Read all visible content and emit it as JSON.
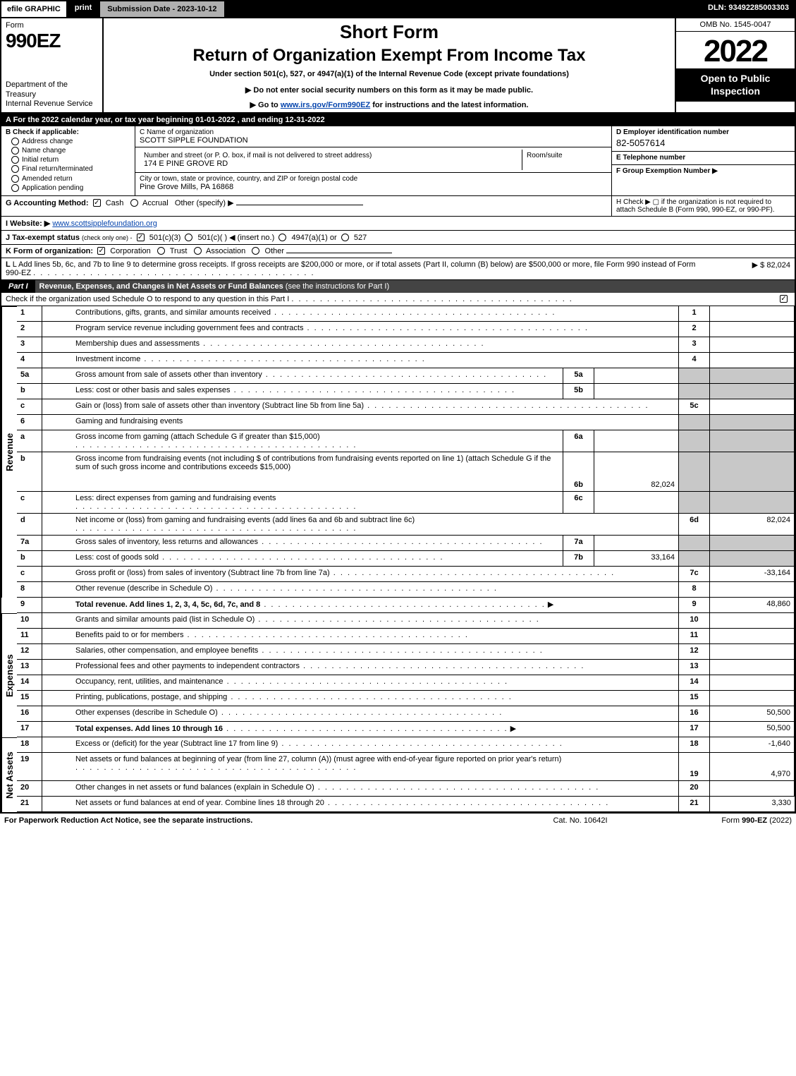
{
  "topbar": {
    "efile": "efile GRAPHIC",
    "print": "print",
    "subdate": "Submission Date - 2023-10-12",
    "dln": "DLN: 93492285003303"
  },
  "header": {
    "formword": "Form",
    "formno": "990EZ",
    "dept": "Department of the Treasury\nInternal Revenue Service",
    "short": "Short Form",
    "ret": "Return of Organization Exempt From Income Tax",
    "under": "Under section 501(c), 527, or 4947(a)(1) of the Internal Revenue Code (except private foundations)",
    "note1": "▶ Do not enter social security numbers on this form as it may be made public.",
    "note2_pre": "▶ Go to ",
    "note2_link": "www.irs.gov/Form990EZ",
    "note2_post": " for instructions and the latest information.",
    "omb": "OMB No. 1545-0047",
    "year": "2022",
    "open": "Open to Public Inspection"
  },
  "lineA": "A  For the 2022 calendar year, or tax year beginning 01-01-2022 , and ending 12-31-2022",
  "B": {
    "head": "B  Check if applicable:",
    "opts": [
      "Address change",
      "Name change",
      "Initial return",
      "Final return/terminated",
      "Amended return",
      "Application pending"
    ]
  },
  "C": {
    "label": "C Name of organization",
    "name": "SCOTT SIPPLE FOUNDATION",
    "street_label": "Number and street (or P. O. box, if mail is not delivered to street address)",
    "street": "174 E PINE GROVE RD",
    "room_label": "Room/suite",
    "city_label": "City or town, state or province, country, and ZIP or foreign postal code",
    "city": "Pine Grove Mills, PA  16868"
  },
  "D": {
    "label": "D Employer identification number",
    "ein": "82-5057614",
    "E_label": "E Telephone number",
    "F_label": "F Group Exemption Number   ▶"
  },
  "G": {
    "label": "G Accounting Method:",
    "cash": "Cash",
    "accrual": "Accrual",
    "other": "Other (specify) ▶"
  },
  "H": {
    "text": "H   Check ▶  ▢  if the organization is not required to attach Schedule B (Form 990, 990-EZ, or 990-PF)."
  },
  "I": {
    "label": "I Website: ▶",
    "url": "www.scottsipplefoundation.org"
  },
  "J": {
    "label": "J Tax-exempt status",
    "sub": "(check only one) -",
    "o1": "501(c)(3)",
    "o2": "501(c)(  ) ◀ (insert no.)",
    "o3": "4947(a)(1) or",
    "o4": "527"
  },
  "K": {
    "label": "K Form of organization:",
    "opts": [
      "Corporation",
      "Trust",
      "Association",
      "Other"
    ]
  },
  "L": {
    "text": "L Add lines 5b, 6c, and 7b to line 9 to determine gross receipts. If gross receipts are $200,000 or more, or if total assets (Part II, column (B) below) are $500,000 or more, file Form 990 instead of Form 990-EZ",
    "amount": "▶ $ 82,024"
  },
  "part1": {
    "num": "Part I",
    "title": "Revenue, Expenses, and Changes in Net Assets or Fund Balances",
    "paren": "(see the instructions for Part I)",
    "check": "Check if the organization used Schedule O to respond to any question in this Part I"
  },
  "sides": {
    "rev": "Revenue",
    "exp": "Expenses",
    "na": "Net Assets"
  },
  "lines": {
    "l1": {
      "n": "1",
      "d": "Contributions, gifts, grants, and similar amounts received",
      "r": "1"
    },
    "l2": {
      "n": "2",
      "d": "Program service revenue including government fees and contracts",
      "r": "2"
    },
    "l3": {
      "n": "3",
      "d": "Membership dues and assessments",
      "r": "3"
    },
    "l4": {
      "n": "4",
      "d": "Investment income",
      "r": "4"
    },
    "l5a": {
      "n": "5a",
      "d": "Gross amount from sale of assets other than inventory",
      "ml": "5a"
    },
    "l5b": {
      "n": "b",
      "d": "Less: cost or other basis and sales expenses",
      "ml": "5b"
    },
    "l5c": {
      "n": "c",
      "d": "Gain or (loss) from sale of assets other than inventory (Subtract line 5b from line 5a)",
      "r": "5c"
    },
    "l6": {
      "n": "6",
      "d": "Gaming and fundraising events"
    },
    "l6a": {
      "n": "a",
      "d": "Gross income from gaming (attach Schedule G if greater than $15,000)",
      "ml": "6a"
    },
    "l6b": {
      "n": "b",
      "d": "Gross income from fundraising events (not including $                     of contributions from fundraising events reported on line 1) (attach Schedule G if the sum of such gross income and contributions exceeds $15,000)",
      "ml": "6b",
      "mv": "82,024"
    },
    "l6c": {
      "n": "c",
      "d": "Less: direct expenses from gaming and fundraising events",
      "ml": "6c"
    },
    "l6d": {
      "n": "d",
      "d": "Net income or (loss) from gaming and fundraising events (add lines 6a and 6b and subtract line 6c)",
      "r": "6d",
      "rv": "82,024"
    },
    "l7a": {
      "n": "7a",
      "d": "Gross sales of inventory, less returns and allowances",
      "ml": "7a"
    },
    "l7b": {
      "n": "b",
      "d": "Less: cost of goods sold",
      "ml": "7b",
      "mv": "33,164"
    },
    "l7c": {
      "n": "c",
      "d": "Gross profit or (loss) from sales of inventory (Subtract line 7b from line 7a)",
      "r": "7c",
      "rv": "-33,164"
    },
    "l8": {
      "n": "8",
      "d": "Other revenue (describe in Schedule O)",
      "r": "8"
    },
    "l9": {
      "n": "9",
      "d": "Total revenue. Add lines 1, 2, 3, 4, 5c, 6d, 7c, and 8",
      "r": "9",
      "rv": "48,860",
      "bold": true,
      "arrow": true
    },
    "l10": {
      "n": "10",
      "d": "Grants and similar amounts paid (list in Schedule O)",
      "r": "10"
    },
    "l11": {
      "n": "11",
      "d": "Benefits paid to or for members",
      "r": "11"
    },
    "l12": {
      "n": "12",
      "d": "Salaries, other compensation, and employee benefits",
      "r": "12"
    },
    "l13": {
      "n": "13",
      "d": "Professional fees and other payments to independent contractors",
      "r": "13"
    },
    "l14": {
      "n": "14",
      "d": "Occupancy, rent, utilities, and maintenance",
      "r": "14"
    },
    "l15": {
      "n": "15",
      "d": "Printing, publications, postage, and shipping",
      "r": "15"
    },
    "l16": {
      "n": "16",
      "d": "Other expenses (describe in Schedule O)",
      "r": "16",
      "rv": "50,500"
    },
    "l17": {
      "n": "17",
      "d": "Total expenses. Add lines 10 through 16",
      "r": "17",
      "rv": "50,500",
      "bold": true,
      "arrow": true
    },
    "l18": {
      "n": "18",
      "d": "Excess or (deficit) for the year (Subtract line 17 from line 9)",
      "r": "18",
      "rv": "-1,640"
    },
    "l19": {
      "n": "19",
      "d": "Net assets or fund balances at beginning of year (from line 27, column (A)) (must agree with end-of-year figure reported on prior year's return)",
      "r": "19",
      "rv": "4,970",
      "tall": true
    },
    "l20": {
      "n": "20",
      "d": "Other changes in net assets or fund balances (explain in Schedule O)",
      "r": "20"
    },
    "l21": {
      "n": "21",
      "d": "Net assets or fund balances at end of year. Combine lines 18 through 20",
      "r": "21",
      "rv": "3,330"
    }
  },
  "footer": {
    "l": "For Paperwork Reduction Act Notice, see the separate instructions.",
    "m": "Cat. No. 10642I",
    "r_pre": "Form ",
    "r_form": "990-EZ",
    "r_post": " (2022)"
  },
  "colors": {
    "grey": "#c8c8c8",
    "link": "#0645ad"
  }
}
